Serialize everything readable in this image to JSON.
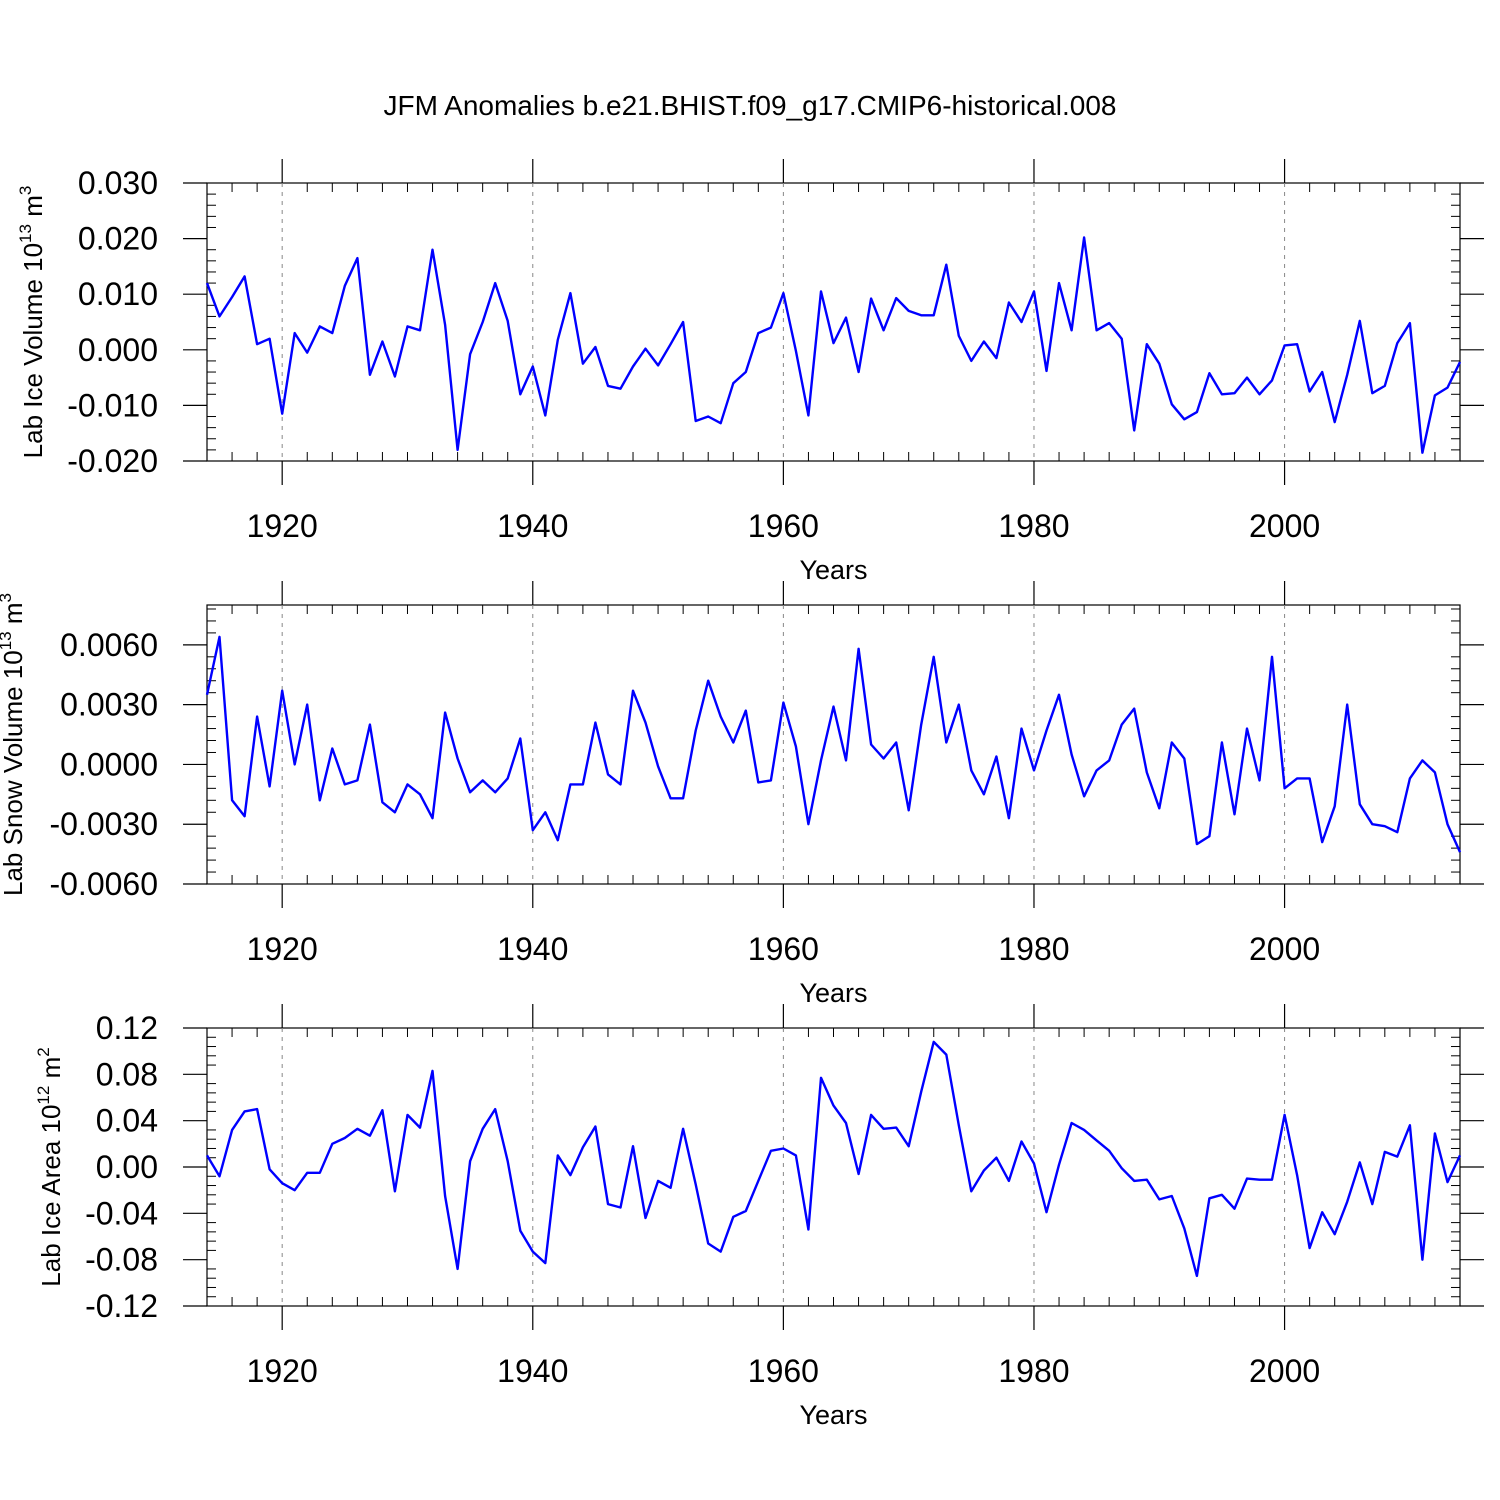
{
  "title": "JFM Anomalies b.e21.BHIST.f09_g17.CMIP6-historical.008",
  "colors": {
    "line": "#0000ff",
    "axis": "#000000",
    "grid": "#888888"
  },
  "chart_data": [
    {
      "type": "line",
      "ylabel": {
        "text": "Lab Ice Volume 10",
        "exp": "13",
        "unit": " m",
        "unit_exp": "3"
      },
      "xlabel": "Years",
      "xlim": [
        1914,
        2014
      ],
      "ylim": [
        -0.02,
        0.03
      ],
      "yticks": [
        -0.02,
        -0.01,
        0.0,
        0.01,
        0.02,
        0.03
      ],
      "ytick_labels": [
        "-0.020",
        "-0.010",
        "0.000",
        "0.010",
        "0.020",
        "0.030"
      ],
      "xticks": [
        1920,
        1940,
        1960,
        1980,
        2000
      ],
      "xtick_labels": [
        "1920",
        "1940",
        "1960",
        "1980",
        "2000"
      ],
      "x_start": 1914,
      "series": [
        {
          "name": "Lab Ice Volume",
          "values": [
            0.012,
            0.006,
            0.0095,
            0.0132,
            0.001,
            0.002,
            -0.0115,
            0.003,
            -0.0005,
            0.0042,
            0.003,
            0.0115,
            0.0165,
            -0.0045,
            0.0015,
            -0.0048,
            0.0042,
            0.0035,
            0.018,
            0.0045,
            -0.018,
            -0.0008,
            0.005,
            0.012,
            0.0052,
            -0.008,
            -0.003,
            -0.0118,
            0.0018,
            0.0102,
            -0.0025,
            0.0005,
            -0.0065,
            -0.007,
            -0.003,
            0.0002,
            -0.0028,
            0.001,
            0.005,
            -0.0128,
            -0.012,
            -0.0132,
            -0.006,
            -0.004,
            0.003,
            0.004,
            0.0102,
            -0.0002,
            -0.0118,
            0.0105,
            0.0012,
            0.0058,
            -0.004,
            0.0092,
            0.0035,
            0.0093,
            0.007,
            0.0062,
            0.0062,
            0.0153,
            0.0025,
            -0.002,
            0.0015,
            -0.0015,
            0.0085,
            0.005,
            0.0105,
            -0.0038,
            0.012,
            0.0035,
            0.0202,
            0.0035,
            0.0048,
            0.002,
            -0.0145,
            0.001,
            -0.0025,
            -0.0098,
            -0.0125,
            -0.0112,
            -0.0042,
            -0.008,
            -0.0078,
            -0.005,
            -0.008,
            -0.0055,
            0.0008,
            0.001,
            -0.0075,
            -0.004,
            -0.013,
            -0.0045,
            0.0052,
            -0.0078,
            -0.0065,
            0.0012,
            0.0048,
            -0.0185,
            -0.0082,
            -0.0068,
            -0.0022
          ]
        }
      ]
    },
    {
      "type": "line",
      "ylabel": {
        "text": "Lab Snow Volume 10",
        "exp": "13",
        "unit": " m",
        "unit_exp": "3"
      },
      "xlabel": "Years",
      "xlim": [
        1914,
        2014
      ],
      "ylim": [
        -0.006,
        0.008
      ],
      "yticks": [
        -0.006,
        -0.003,
        0.0,
        0.003,
        0.006
      ],
      "ytick_labels": [
        "-0.0060",
        "-0.0030",
        "0.0000",
        "0.0030",
        "0.0060"
      ],
      "xticks": [
        1920,
        1940,
        1960,
        1980,
        2000
      ],
      "xtick_labels": [
        "1920",
        "1940",
        "1960",
        "1980",
        "2000"
      ],
      "x_start": 1914,
      "series": [
        {
          "name": "Lab Snow Volume",
          "values": [
            0.0035,
            0.0064,
            -0.0018,
            -0.0026,
            0.0024,
            -0.0011,
            0.0037,
            0.0,
            0.003,
            -0.0018,
            0.0008,
            -0.001,
            -0.0008,
            0.002,
            -0.0019,
            -0.0024,
            -0.001,
            -0.0015,
            -0.0027,
            0.0026,
            0.0003,
            -0.0014,
            -0.0008,
            -0.0014,
            -0.0007,
            0.0013,
            -0.0033,
            -0.0024,
            -0.0038,
            -0.001,
            -0.001,
            0.0021,
            -0.0005,
            -0.001,
            0.0037,
            0.0021,
            -0.0001,
            -0.0017,
            -0.0017,
            0.0017,
            0.0042,
            0.0024,
            0.0011,
            0.0027,
            -0.0009,
            -0.0008,
            0.0031,
            0.0009,
            -0.003,
            0.0002,
            0.0029,
            0.0002,
            0.0058,
            0.001,
            0.0003,
            0.0011,
            -0.0023,
            0.002,
            0.0054,
            0.0011,
            0.003,
            -0.0003,
            -0.0015,
            0.0004,
            -0.0027,
            0.0018,
            -0.0003,
            0.0017,
            0.0035,
            0.0005,
            -0.0016,
            -0.0003,
            0.0002,
            0.002,
            0.0028,
            -0.0004,
            -0.0022,
            0.0011,
            0.0003,
            -0.004,
            -0.0036,
            0.0011,
            -0.0025,
            0.0018,
            -0.0008,
            0.0054,
            -0.0012,
            -0.0007,
            -0.0007,
            -0.0039,
            -0.0021,
            0.003,
            -0.002,
            -0.003,
            -0.0031,
            -0.0034,
            -0.0007,
            0.0002,
            -0.0004,
            -0.003,
            -0.0044
          ]
        }
      ]
    },
    {
      "type": "line",
      "ylabel": {
        "text": "Lab Ice Area 10",
        "exp": "12",
        "unit": " m",
        "unit_exp": "2"
      },
      "xlabel": "Years",
      "xlim": [
        1914,
        2014
      ],
      "ylim": [
        -0.12,
        0.12
      ],
      "yticks": [
        -0.12,
        -0.08,
        -0.04,
        0.0,
        0.04,
        0.08,
        0.12
      ],
      "ytick_labels": [
        "-0.12",
        "-0.08",
        "-0.04",
        "0.00",
        "0.04",
        "0.08",
        "0.12"
      ],
      "xticks": [
        1920,
        1940,
        1960,
        1980,
        2000
      ],
      "xtick_labels": [
        "1920",
        "1940",
        "1960",
        "1980",
        "2000"
      ],
      "x_start": 1914,
      "series": [
        {
          "name": "Lab Ice Area",
          "values": [
            0.01,
            -0.008,
            0.032,
            0.048,
            0.05,
            -0.002,
            -0.014,
            -0.02,
            -0.005,
            -0.005,
            0.02,
            0.025,
            0.033,
            0.027,
            0.049,
            -0.021,
            0.045,
            0.034,
            0.083,
            -0.025,
            -0.088,
            0.005,
            0.033,
            0.05,
            0.005,
            -0.055,
            -0.073,
            -0.083,
            0.01,
            -0.007,
            0.017,
            0.035,
            -0.032,
            -0.035,
            0.018,
            -0.044,
            -0.012,
            -0.018,
            0.033,
            -0.015,
            -0.066,
            -0.073,
            -0.043,
            -0.038,
            -0.012,
            0.014,
            0.016,
            0.01,
            -0.054,
            0.077,
            0.053,
            0.038,
            -0.006,
            0.045,
            0.033,
            0.034,
            0.018,
            0.065,
            0.108,
            0.097,
            0.036,
            -0.021,
            -0.003,
            0.008,
            -0.012,
            0.022,
            0.003,
            -0.039,
            0.002,
            0.038,
            0.032,
            0.023,
            0.014,
            -0.001,
            -0.012,
            -0.011,
            -0.028,
            -0.025,
            -0.053,
            -0.094,
            -0.027,
            -0.024,
            -0.036,
            -0.01,
            -0.011,
            -0.011,
            0.045,
            -0.007,
            -0.07,
            -0.039,
            -0.058,
            -0.03,
            0.004,
            -0.032,
            0.013,
            0.009,
            0.036,
            -0.08,
            0.029,
            -0.013,
            0.01
          ]
        }
      ]
    }
  ]
}
